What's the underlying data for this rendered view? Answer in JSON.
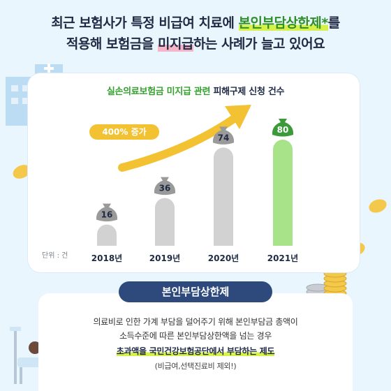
{
  "headline": {
    "line1_a": "최근 보험사가 특정 비급여 치료에 ",
    "line1_b": "본인부담상한제*",
    "line1_c": "를",
    "line2_a": "적용해 보험금을 ",
    "line2_b": "미지급",
    "line2_c": "하는 사례가 늘고 있어요"
  },
  "chart_data": {
    "type": "bar",
    "title_a": "실손의료보험금 미지급 관련 ",
    "title_b": "피해구제 신청 건수",
    "categories": [
      "2018년",
      "2019년",
      "2020년",
      "2021년"
    ],
    "values": [
      16,
      36,
      74,
      80
    ],
    "unit_label": "단위 : 건",
    "annotation": "400% 증가",
    "ylim": [
      0,
      80
    ],
    "colors": {
      "bar": "#d2d2d2",
      "bar_highlight": "#a8e38a",
      "bag": "#9a9a9a",
      "bag_highlight": "#3c9a3a",
      "arrow": "#f2c233"
    }
  },
  "definition": {
    "title": "본인부담상한제",
    "line1": "의료비로 인한 가계 부담을 덜어주기 위해 본인부담금 총액이",
    "line2": "소득수준에 따른 본인부담상한액을 넘는 경우",
    "line3": "초과액을 국민건강보험공단에서 부담하는 제도",
    "line4": "(비급여,선택진료비 제외!)"
  },
  "icons": [
    "hospital-icon",
    "coin-icon",
    "coin-stack-icon",
    "patient-bed-icon",
    "money-bag-icon"
  ]
}
